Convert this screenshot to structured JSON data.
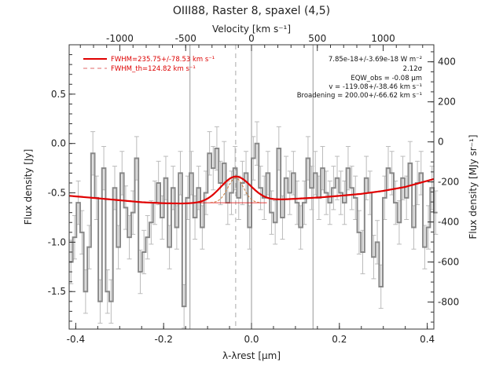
{
  "chart_data": {
    "type": "line",
    "title": "OIII88, Raster 8, spaxel (4,5)",
    "xlabel": "λ-λrest [μm]",
    "ylabel": "Flux density [Jy]",
    "top_xlabel": "Velocity [km s⁻¹]",
    "right_ylabel": "Flux density [MJy sr⁻¹]",
    "xlim": [
      -0.415,
      0.415
    ],
    "ylim": [
      -1.88,
      1.0
    ],
    "top_xlim": [
      -1385,
      1385
    ],
    "right_ylim": [
      -935,
      485
    ],
    "x_ticks": [
      {
        "v": -0.4,
        "label": "-0.4"
      },
      {
        "v": -0.2,
        "label": "-0.2"
      },
      {
        "v": 0.0,
        "label": "0.0"
      },
      {
        "v": 0.2,
        "label": "0.2"
      },
      {
        "v": 0.4,
        "label": "0.4"
      }
    ],
    "y_ticks": [
      {
        "v": 0.5,
        "label": "0.5"
      },
      {
        "v": 0.0,
        "label": "0.0"
      },
      {
        "v": -0.5,
        "label": "-0.5"
      },
      {
        "v": -1.0,
        "label": "-1.0"
      },
      {
        "v": -1.5,
        "label": "-1.5"
      }
    ],
    "top_ticks": [
      {
        "v": -1000,
        "label": "-1000"
      },
      {
        "v": -500,
        "label": "-500"
      },
      {
        "v": 0,
        "label": "0"
      },
      {
        "v": 500,
        "label": "500"
      },
      {
        "v": 1000,
        "label": "1000"
      }
    ],
    "right_ticks": [
      {
        "v": 400,
        "label": "400"
      },
      {
        "v": 200,
        "label": "200"
      },
      {
        "v": 0,
        "label": "0"
      },
      {
        "v": -200,
        "label": "-200"
      },
      {
        "v": -400,
        "label": "-400"
      },
      {
        "v": -600,
        "label": "-600"
      },
      {
        "v": -800,
        "label": "-800"
      }
    ],
    "vlines_gray": [
      -0.14,
      0.0,
      0.14
    ],
    "vline_dashed": -0.036,
    "spectrum": {
      "x_start": -0.415,
      "x_step": 0.0083,
      "values": [
        -1.2,
        -0.95,
        -0.6,
        -0.9,
        -1.5,
        -1.05,
        -0.1,
        -0.55,
        -1.6,
        -0.25,
        -1.5,
        -1.6,
        -0.45,
        -1.05,
        -0.3,
        -0.65,
        -0.95,
        -0.7,
        -0.15,
        -1.3,
        -1.1,
        -0.95,
        -0.8,
        -0.6,
        -0.4,
        -0.75,
        -0.35,
        -1.05,
        -0.45,
        -0.85,
        -0.3,
        -1.65,
        -0.55,
        -0.3,
        -0.75,
        -0.45,
        -0.85,
        -0.5,
        -0.1,
        -0.25,
        -0.05,
        -0.4,
        -0.2,
        -0.6,
        -0.5,
        -0.25,
        -0.55,
        -0.4,
        -0.3,
        -0.85,
        -0.15,
        0.0,
        -0.45,
        -0.55,
        -0.3,
        -0.7,
        -0.8,
        -0.05,
        -0.75,
        -0.35,
        -0.5,
        -0.3,
        -0.6,
        -0.85,
        -0.6,
        -0.15,
        -0.45,
        -0.3,
        -0.55,
        -0.25,
        -0.5,
        -0.6,
        -0.45,
        -0.35,
        -0.5,
        -0.6,
        -0.25,
        -0.45,
        -0.55,
        -0.9,
        -1.1,
        -0.35,
        -0.5,
        -1.15,
        -1.0,
        -1.45,
        -0.55,
        -0.25,
        -0.3,
        -0.6,
        -0.8,
        -0.35,
        -0.55,
        -0.2,
        -0.85,
        -0.4,
        -0.3,
        -1.05,
        -0.85,
        -0.45,
        -0.7
      ],
      "err": 0.22
    },
    "fit_continuum_points": [
      [
        -0.415,
        -0.53
      ],
      [
        -0.35,
        -0.555
      ],
      [
        -0.3,
        -0.575
      ],
      [
        -0.25,
        -0.595
      ],
      [
        -0.2,
        -0.605
      ],
      [
        -0.16,
        -0.608
      ],
      [
        -0.12,
        -0.605
      ],
      [
        -0.08,
        -0.595
      ],
      [
        -0.04,
        -0.585
      ],
      [
        0.0,
        -0.58
      ],
      [
        0.04,
        -0.575
      ],
      [
        0.08,
        -0.565
      ],
      [
        0.12,
        -0.555
      ],
      [
        0.16,
        -0.545
      ],
      [
        0.2,
        -0.53
      ],
      [
        0.25,
        -0.51
      ],
      [
        0.3,
        -0.48
      ],
      [
        0.35,
        -0.44
      ],
      [
        0.415,
        -0.36
      ]
    ],
    "fit_gaussian": {
      "center": -0.036,
      "amplitude": 0.25,
      "sigma": 0.034
    },
    "theoretical_gaussian": {
      "center": -0.036,
      "amplitude": 0.25,
      "sigma": 0.018,
      "base": -0.6
    },
    "legend": {
      "entry1": "FWHM=235.75+/-78.53 km s⁻¹",
      "entry2": "FWHM_th=124.82 km s⁻¹"
    },
    "annotations": {
      "flux": "7.85e-18+/-3.69e-18 W m⁻²",
      "sigma": "2.12σ",
      "eqw": "EQW_obs = -0.08 μm",
      "velocity": "v = -119.08+/-38.46 km s⁻¹",
      "broadening": "Broadening = 200.00+/-66.62 km s⁻¹"
    },
    "colors": {
      "fit": "#e00000",
      "spectrum": "#888888",
      "errorbar": "#bbbbbb",
      "theory": "#c87a3a"
    }
  }
}
